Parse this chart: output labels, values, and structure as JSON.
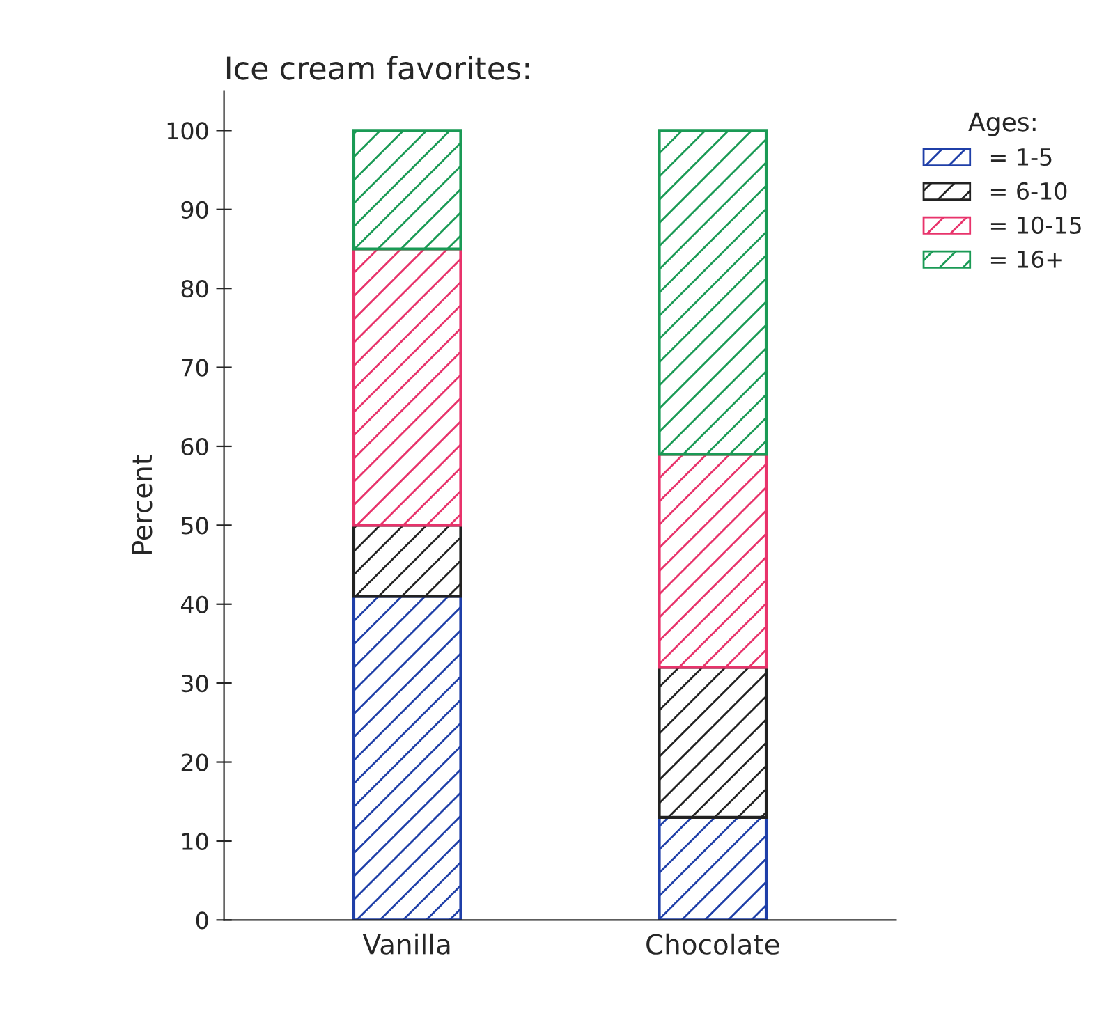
{
  "chart_data": {
    "type": "bar",
    "title": "Ice cream favorites:",
    "ylabel": "Percent",
    "legend_title": "Ages:",
    "stacked": true,
    "categories": [
      "Vanilla",
      "Chocolate"
    ],
    "series": [
      {
        "name": "= 1-5",
        "color": "#1f3fa8",
        "values": [
          41,
          13
        ]
      },
      {
        "name": "= 6-10",
        "color": "#222222",
        "values": [
          9,
          19
        ]
      },
      {
        "name": "= 10-15",
        "color": "#e8336b",
        "values": [
          35,
          27
        ]
      },
      {
        "name": "= 16+",
        "color": "#1a9a55",
        "values": [
          15,
          41
        ]
      }
    ],
    "ylim": [
      0,
      105
    ],
    "yticks": [
      0,
      10,
      20,
      30,
      40,
      50,
      60,
      70,
      80,
      90,
      100
    ],
    "grid": false,
    "legend": "top right"
  }
}
